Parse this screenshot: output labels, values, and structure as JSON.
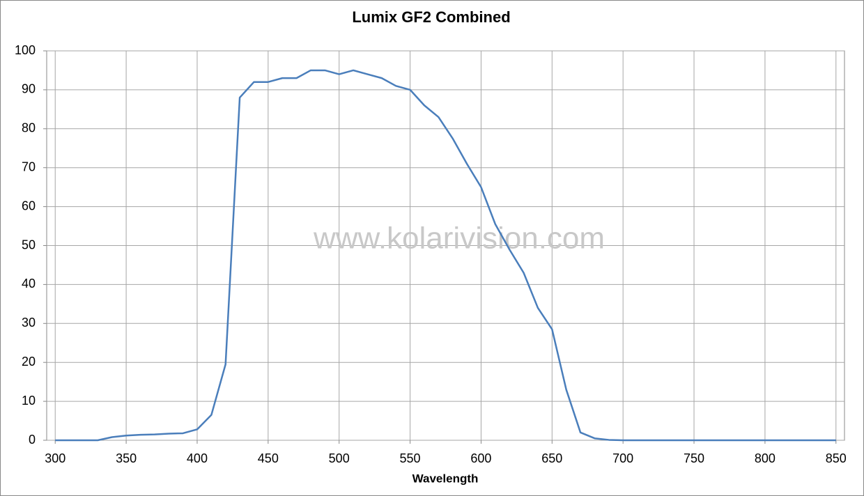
{
  "chart_data": {
    "type": "line",
    "title": "Lumix GF2 Combined",
    "x_label": "Wavelength",
    "watermark": "www.kolarivision.com",
    "x": [
      300,
      310,
      320,
      330,
      340,
      350,
      360,
      370,
      380,
      390,
      400,
      410,
      420,
      430,
      440,
      450,
      460,
      470,
      480,
      490,
      500,
      510,
      520,
      530,
      540,
      550,
      560,
      570,
      580,
      590,
      600,
      610,
      620,
      630,
      640,
      650,
      660,
      670,
      680,
      690,
      700,
      710,
      720,
      730,
      740,
      750,
      760,
      770,
      780,
      790,
      800,
      810,
      820,
      830,
      840,
      850
    ],
    "series": [
      {
        "name": "Lumix GF2 Combined",
        "color": "#4a7ebb",
        "values": [
          0,
          0,
          0,
          0,
          0.8,
          1.2,
          1.4,
          1.5,
          1.7,
          1.8,
          2.8,
          6.5,
          19.5,
          88,
          92,
          92,
          93,
          93,
          95,
          95,
          94,
          95,
          94,
          93,
          91,
          90,
          86,
          83,
          77.5,
          71,
          65,
          55.5,
          49,
          43,
          34,
          28.5,
          13,
          2,
          0.5,
          0.1,
          0,
          0,
          0,
          0,
          0,
          0,
          0,
          0,
          0,
          0,
          0,
          0,
          0,
          0,
          0,
          0
        ]
      }
    ],
    "xlim": [
      294,
      856
    ],
    "xticks": [
      300,
      350,
      400,
      450,
      500,
      550,
      600,
      650,
      700,
      750,
      800,
      850
    ],
    "ylim": [
      0,
      100
    ],
    "yticks": [
      0,
      10,
      20,
      30,
      40,
      50,
      60,
      70,
      80,
      90,
      100
    ],
    "grid": true
  }
}
